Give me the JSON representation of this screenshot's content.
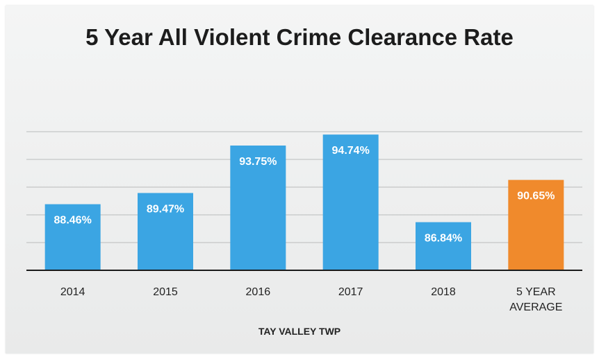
{
  "chart_data": {
    "type": "bar",
    "title": "5 Year All Violent Crime Clearance Rate",
    "xlabel": "TAY VALLEY TWP",
    "ylabel": "",
    "categories": [
      "2014",
      "2015",
      "2016",
      "2017",
      "2018",
      "5 YEAR AVERAGE"
    ],
    "values": [
      88.46,
      89.47,
      93.75,
      94.74,
      86.84,
      90.65
    ],
    "data_labels": [
      "88.46%",
      "89.47%",
      "93.75%",
      "94.74%",
      "86.84%",
      "90.65%"
    ],
    "ylim": [
      82.5,
      95.0
    ],
    "grid": true,
    "legend": "none",
    "colors": [
      "#3ba5e3",
      "#3ba5e3",
      "#3ba5e3",
      "#3ba5e3",
      "#3ba5e3",
      "#f08a2c"
    ]
  }
}
